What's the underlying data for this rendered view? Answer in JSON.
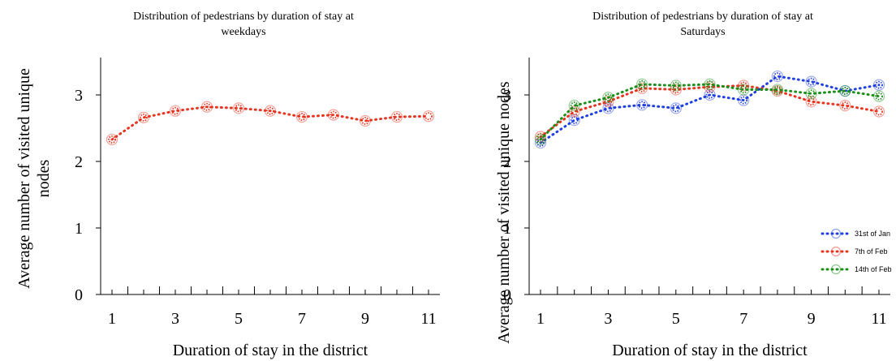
{
  "chart_data": [
    {
      "type": "line",
      "title": "Distribution of pedestrians by duration of stay at weekdays",
      "title_lines": [
        "Distribution of pedestrians by duration of stay at",
        "weekdays"
      ],
      "xlabel": "Duration of stay in the district",
      "ylabel": "Average number of visited unique nodes",
      "ylabel_lines": [
        "Average number of visited unique",
        "nodes"
      ],
      "xlim": [
        0.5,
        11.5
      ],
      "ylim": [
        0,
        3.5
      ],
      "x_ticks": [
        "1",
        "3",
        "5",
        "7",
        "9",
        "11"
      ],
      "y_ticks": [
        "0",
        "1",
        "2",
        "3"
      ],
      "legend": "none",
      "series": [
        {
          "color": "#e8331f",
          "x": [
            1,
            2,
            3,
            4,
            5,
            6,
            7,
            8,
            9,
            10,
            11
          ],
          "y": [
            2.33,
            2.66,
            2.76,
            2.82,
            2.8,
            2.76,
            2.67,
            2.7,
            2.61,
            2.67,
            2.68
          ]
        }
      ]
    },
    {
      "type": "line",
      "title": "Distribution of pedestrians by duration of stay at Saturdays",
      "title_lines": [
        "Distribution of pedestrians by duration of stay at",
        "Saturdays"
      ],
      "xlabel": "Duration of stay in the district",
      "ylabel": "Average number of visited unique nodes",
      "ylabel_lines": [
        "Average number of visited unique nodes"
      ],
      "xlim": [
        0.5,
        11.5
      ],
      "ylim": [
        0,
        3.5
      ],
      "x_ticks": [
        "1",
        "3",
        "5",
        "7",
        "9",
        "11"
      ],
      "y_ticks": [
        "0",
        "1",
        "2",
        "3"
      ],
      "legend": "bottom-right",
      "series": [
        {
          "name": "31st of Jan",
          "color": "#1f3fe0",
          "x": [
            1,
            2,
            3,
            4,
            5,
            6,
            7,
            8,
            9,
            10,
            11
          ],
          "y": [
            2.28,
            2.62,
            2.8,
            2.85,
            2.8,
            3.0,
            2.92,
            3.28,
            3.2,
            3.06,
            3.15
          ]
        },
        {
          "name": "7th of Feb",
          "color": "#e8331f",
          "x": [
            1,
            2,
            3,
            4,
            5,
            6,
            7,
            8,
            9,
            10,
            11
          ],
          "y": [
            2.37,
            2.75,
            2.9,
            3.1,
            3.08,
            3.12,
            3.14,
            3.06,
            2.9,
            2.84,
            2.75
          ]
        },
        {
          "name": "14th of Feb",
          "color": "#1a8f1a",
          "x": [
            1,
            2,
            3,
            4,
            5,
            6,
            7,
            8,
            9,
            10,
            11
          ],
          "y": [
            2.33,
            2.84,
            2.96,
            3.16,
            3.14,
            3.16,
            3.08,
            3.08,
            3.02,
            3.06,
            2.98
          ]
        }
      ]
    }
  ]
}
